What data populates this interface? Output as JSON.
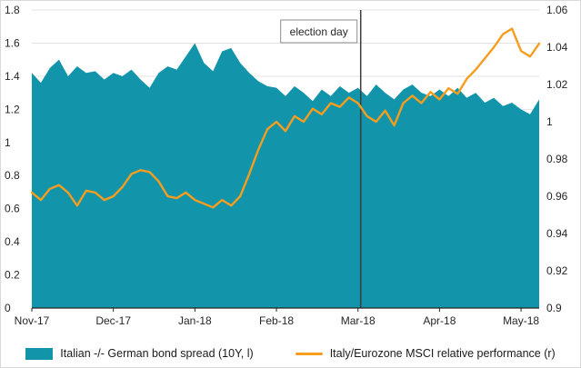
{
  "chart_data": {
    "type": "area",
    "title": "",
    "x_tick_labels": [
      "Nov-17",
      "Dec-17",
      "Jan-18",
      "Feb-18",
      "Mar-18",
      "Apr-18",
      "May-18"
    ],
    "x_tick_indices": [
      0,
      9,
      18,
      27,
      36,
      45,
      54
    ],
    "left_axis": {
      "range": [
        0,
        1.8
      ],
      "ticks": [
        0,
        0.2,
        0.4,
        0.6,
        0.8,
        1,
        1.2,
        1.4,
        1.6,
        1.8
      ],
      "tick_labels": [
        "0",
        "0.2",
        "0.4",
        "0.6",
        "0.8",
        "1",
        "1.2",
        "1.4",
        "1.6",
        "1.8"
      ]
    },
    "right_axis": {
      "range": [
        0.9,
        1.06
      ],
      "ticks": [
        0.9,
        0.92,
        0.94,
        0.96,
        0.98,
        1,
        1.02,
        1.04,
        1.06
      ],
      "tick_labels": [
        "0.9",
        "0.92",
        "0.94",
        "0.96",
        "0.98",
        "1",
        "1.02",
        "1.04",
        "1.06"
      ]
    },
    "annotation": {
      "label": "election day",
      "x_index": 36.3,
      "line_color": "#3c3c3c",
      "box_border_color": "#8c8c8c",
      "box_fill": "#ffffff"
    },
    "grid_color": "#e3e3e3",
    "axis_color": "#262626",
    "series": [
      {
        "name": "Italian -/- German bond spread (10Y, l)",
        "type": "area",
        "axis": "left",
        "color": "#1295ab",
        "values": [
          1.42,
          1.36,
          1.45,
          1.5,
          1.4,
          1.46,
          1.42,
          1.43,
          1.38,
          1.42,
          1.4,
          1.44,
          1.38,
          1.33,
          1.42,
          1.46,
          1.44,
          1.52,
          1.6,
          1.48,
          1.43,
          1.55,
          1.57,
          1.48,
          1.42,
          1.37,
          1.34,
          1.33,
          1.28,
          1.34,
          1.3,
          1.25,
          1.32,
          1.28,
          1.34,
          1.3,
          1.33,
          1.28,
          1.35,
          1.3,
          1.26,
          1.32,
          1.35,
          1.3,
          1.28,
          1.32,
          1.28,
          1.33,
          1.27,
          1.3,
          1.24,
          1.27,
          1.22,
          1.24,
          1.2,
          1.17,
          1.26
        ]
      },
      {
        "name": "Italy/Eurozone MSCI relative performance (r)",
        "type": "line",
        "axis": "right",
        "color": "#f79d1e",
        "values": [
          0.962,
          0.958,
          0.964,
          0.966,
          0.962,
          0.955,
          0.963,
          0.962,
          0.958,
          0.96,
          0.965,
          0.972,
          0.974,
          0.973,
          0.968,
          0.96,
          0.959,
          0.962,
          0.958,
          0.956,
          0.954,
          0.958,
          0.955,
          0.96,
          0.972,
          0.985,
          0.996,
          1.0,
          0.995,
          1.003,
          1.0,
          1.007,
          1.004,
          1.01,
          1.008,
          1.013,
          1.01,
          1.003,
          1.0,
          1.006,
          0.998,
          1.01,
          1.014,
          1.01,
          1.016,
          1.012,
          1.018,
          1.015,
          1.023,
          1.028,
          1.034,
          1.04,
          1.047,
          1.05,
          1.038,
          1.035,
          1.042
        ]
      }
    ]
  }
}
